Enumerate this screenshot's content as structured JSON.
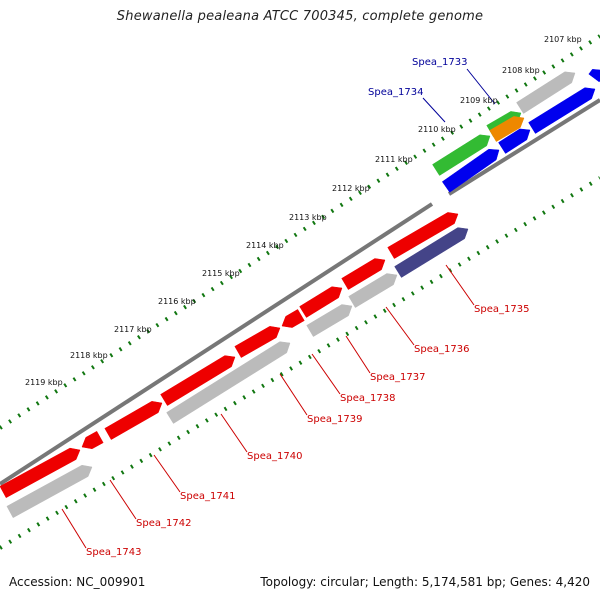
{
  "title": "Shewanella pealeana ATCC 700345, complete genome",
  "footer": {
    "accession_label": "Accession:",
    "accession": "NC_009901",
    "topology_label": "Topology:",
    "topology": "circular",
    "length_label": "Length:",
    "length": "5,174,581 bp",
    "genes_label": "Genes:",
    "genes": "4,420"
  },
  "kbp_ticks": [
    "2107 kbp",
    "2108 kbp",
    "2109 kbp",
    "2110 kbp",
    "2111 kbp",
    "2112 kbp",
    "2113 kbp",
    "2114 kbp",
    "2115 kbp",
    "2116 kbp",
    "2117 kbp",
    "2118 kbp",
    "2119 kbp"
  ],
  "gene_labels": [
    {
      "name": "Spea_1733",
      "color": "#000099"
    },
    {
      "name": "Spea_1734",
      "color": "#000099"
    },
    {
      "name": "Spea_1735",
      "color": "#cc0000"
    },
    {
      "name": "Spea_1736",
      "color": "#cc0000"
    },
    {
      "name": "Spea_1737",
      "color": "#cc0000"
    },
    {
      "name": "Spea_1738",
      "color": "#cc0000"
    },
    {
      "name": "Spea_1739",
      "color": "#cc0000"
    },
    {
      "name": "Spea_1740",
      "color": "#cc0000"
    },
    {
      "name": "Spea_1741",
      "color": "#cc0000"
    },
    {
      "name": "Spea_1742",
      "color": "#cc0000"
    },
    {
      "name": "Spea_1743",
      "color": "#cc0000"
    }
  ],
  "colors": {
    "cds_red": "#ee0000",
    "cds_blue": "#0000ee",
    "cds_green": "#33bb33",
    "cds_orange": "#ee8800",
    "cds_gray": "#bbbbbb",
    "cds_purple": "#444488",
    "backbone": "#777777",
    "ticks": "#117711"
  }
}
